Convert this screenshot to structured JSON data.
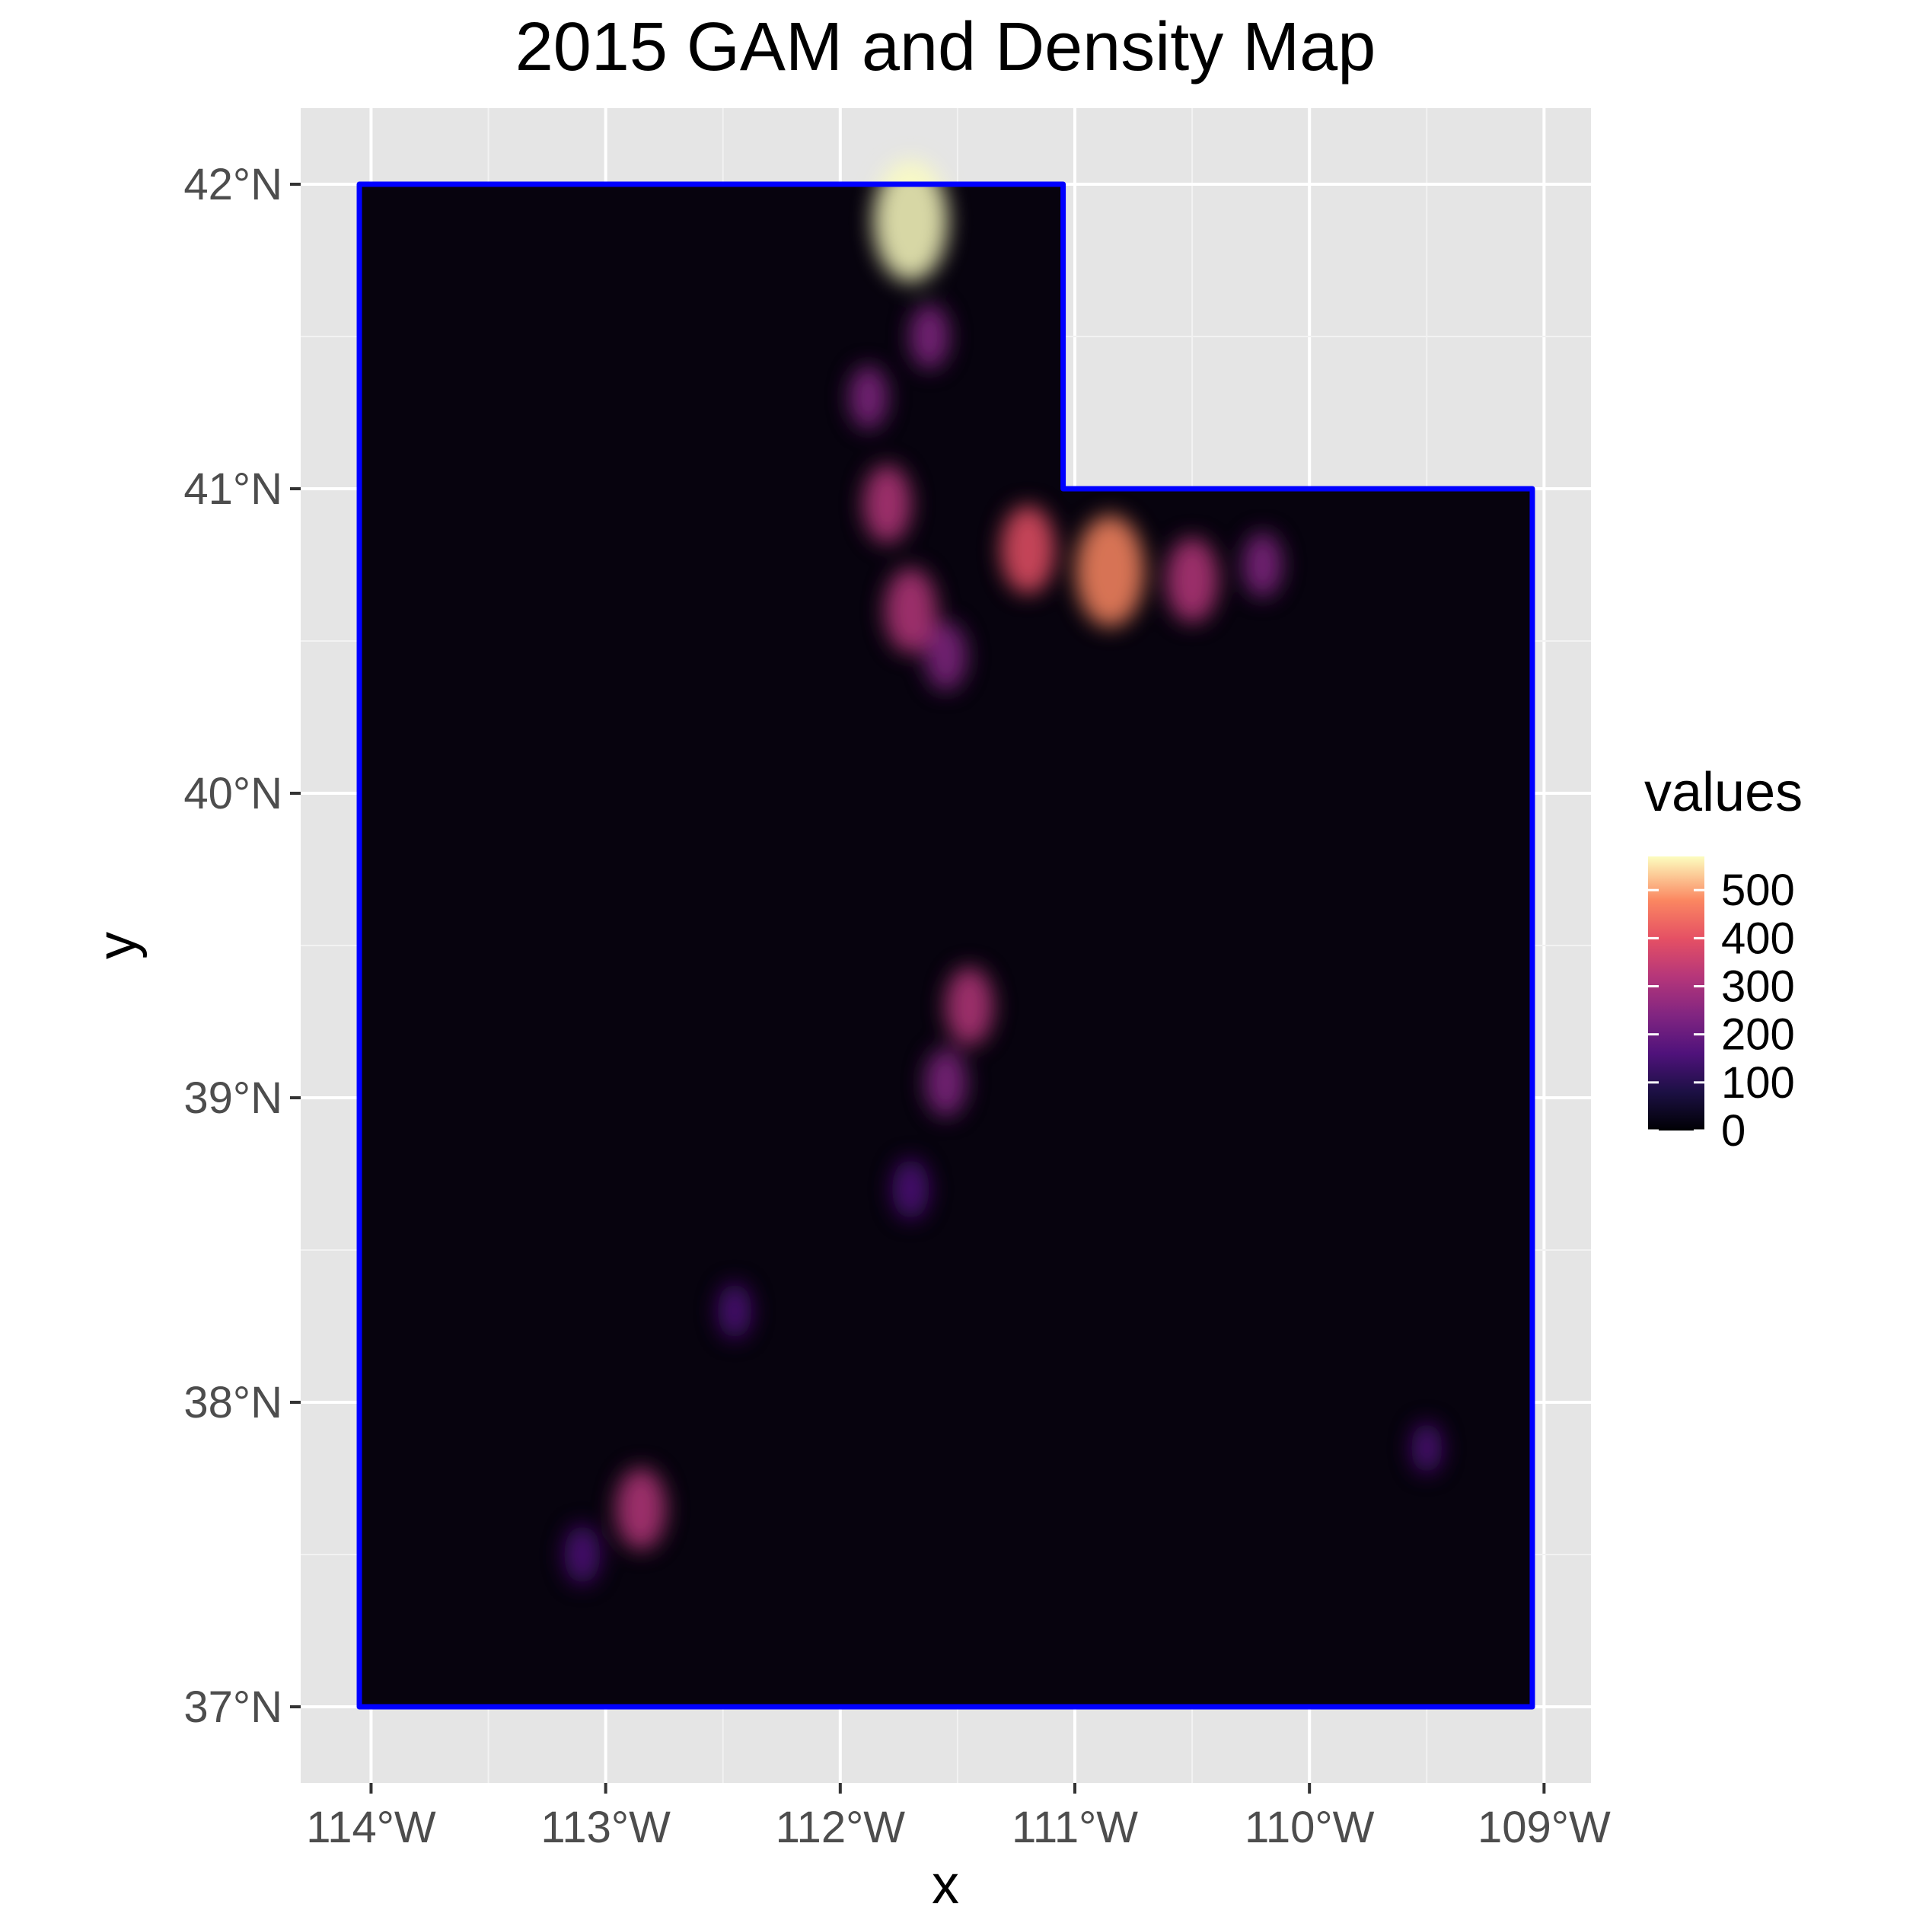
{
  "map": {
    "title": "2015 GAM and Density Map",
    "x_axis_title": "x",
    "y_axis_title": "y",
    "x_ticks": [
      {
        "value": -114,
        "label": "114°W"
      },
      {
        "value": -113,
        "label": "113°W"
      },
      {
        "value": -112,
        "label": "112°W"
      },
      {
        "value": -111,
        "label": "111°W"
      },
      {
        "value": -110,
        "label": "110°W"
      },
      {
        "value": -109,
        "label": "109°W"
      }
    ],
    "y_ticks": [
      {
        "value": 37,
        "label": "37°N"
      },
      {
        "value": 38,
        "label": "38°N"
      },
      {
        "value": 39,
        "label": "39°N"
      },
      {
        "value": 40,
        "label": "40°N"
      },
      {
        "value": 41,
        "label": "41°N"
      },
      {
        "value": 42,
        "label": "42°N"
      }
    ],
    "xlim": [
      -114.3,
      -108.8
    ],
    "ylim": [
      36.75,
      42.25
    ],
    "boundary": {
      "name": "Utah",
      "color": "#0000ff",
      "vertices": [
        [
          -114.05,
          42.0
        ],
        [
          -111.05,
          42.0
        ],
        [
          -111.05,
          41.0
        ],
        [
          -109.05,
          41.0
        ],
        [
          -109.05,
          37.0
        ],
        [
          -114.05,
          37.0
        ]
      ]
    },
    "raster": {
      "base_color": "#07030e",
      "hotspots": [
        {
          "lon": -111.7,
          "lat": 41.88,
          "value": 520
        },
        {
          "lon": -111.62,
          "lat": 41.5,
          "value": 180
        },
        {
          "lon": -111.88,
          "lat": 41.3,
          "value": 170
        },
        {
          "lon": -111.8,
          "lat": 40.95,
          "value": 260
        },
        {
          "lon": -111.7,
          "lat": 40.6,
          "value": 300
        },
        {
          "lon": -111.55,
          "lat": 40.45,
          "value": 200
        },
        {
          "lon": -111.2,
          "lat": 40.8,
          "value": 320
        },
        {
          "lon": -110.85,
          "lat": 40.73,
          "value": 460
        },
        {
          "lon": -110.5,
          "lat": 40.7,
          "value": 300
        },
        {
          "lon": -110.2,
          "lat": 40.75,
          "value": 180
        },
        {
          "lon": -111.45,
          "lat": 39.3,
          "value": 260
        },
        {
          "lon": -111.55,
          "lat": 39.05,
          "value": 200
        },
        {
          "lon": -111.7,
          "lat": 38.7,
          "value": 150
        },
        {
          "lon": -112.45,
          "lat": 38.3,
          "value": 120
        },
        {
          "lon": -112.85,
          "lat": 37.65,
          "value": 280
        },
        {
          "lon": -113.1,
          "lat": 37.5,
          "value": 140
        },
        {
          "lon": -109.5,
          "lat": 37.85,
          "value": 90
        }
      ]
    },
    "legend": {
      "title": "values",
      "labels": [
        "500",
        "400",
        "300",
        "200",
        "100",
        "0"
      ],
      "tick_values": [
        500,
        400,
        300,
        200,
        100,
        0
      ],
      "range": [
        0,
        570
      ],
      "palette": "magma"
    }
  }
}
